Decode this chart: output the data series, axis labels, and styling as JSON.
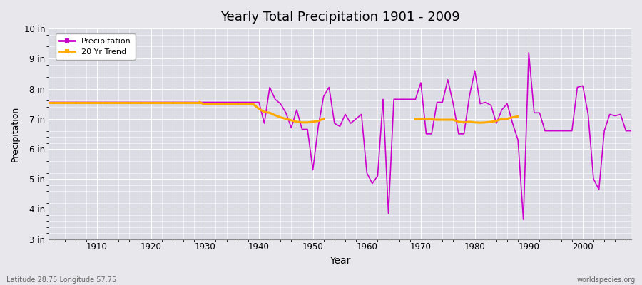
{
  "title": "Yearly Total Precipitation 1901 - 2009",
  "xlabel": "Year",
  "ylabel": "Precipitation",
  "precip_color": "#cc00cc",
  "trend_color": "#ffaa00",
  "bg_color": "#e8e8ec",
  "plot_bg_color": "#dcdce4",
  "grid_color": "#ffffff",
  "ylim": [
    3,
    10
  ],
  "xlim": [
    1901,
    2009
  ],
  "yticks": [
    3,
    4,
    5,
    6,
    7,
    8,
    9,
    10
  ],
  "ytick_labels": [
    "3 in",
    "4 in",
    "5 in",
    "6 in",
    "7 in",
    "8 in",
    "9 in",
    "10 in"
  ],
  "xticks": [
    1910,
    1920,
    1930,
    1940,
    1950,
    1960,
    1970,
    1980,
    1990,
    2000
  ],
  "footnote_left": "Latitude 28.75 Longitude 57.75",
  "footnote_right": "worldspecies.org",
  "years": [
    1901,
    1902,
    1903,
    1904,
    1905,
    1906,
    1907,
    1908,
    1909,
    1910,
    1911,
    1912,
    1913,
    1914,
    1915,
    1916,
    1917,
    1918,
    1919,
    1920,
    1921,
    1922,
    1923,
    1924,
    1925,
    1926,
    1927,
    1928,
    1929,
    1930,
    1931,
    1932,
    1933,
    1934,
    1935,
    1936,
    1937,
    1938,
    1939,
    1940,
    1941,
    1942,
    1943,
    1944,
    1945,
    1946,
    1947,
    1948,
    1949,
    1950,
    1951,
    1952,
    1953,
    1954,
    1955,
    1956,
    1957,
    1958,
    1959,
    1960,
    1961,
    1962,
    1963,
    1964,
    1965,
    1966,
    1967,
    1968,
    1969,
    1970,
    1971,
    1972,
    1973,
    1974,
    1975,
    1976,
    1977,
    1978,
    1979,
    1980,
    1981,
    1982,
    1983,
    1984,
    1985,
    1986,
    1987,
    1988,
    1989,
    1990,
    1991,
    1992,
    1993,
    1994,
    1995,
    1996,
    1997,
    1998,
    1999,
    2000,
    2001,
    2002,
    2003,
    2004,
    2005,
    2006,
    2007,
    2008,
    2009
  ],
  "precip": [
    7.55,
    7.55,
    7.55,
    7.55,
    7.55,
    7.55,
    7.55,
    7.55,
    7.55,
    7.55,
    7.55,
    7.55,
    7.55,
    7.55,
    7.55,
    7.55,
    7.55,
    7.55,
    7.55,
    7.55,
    7.55,
    7.55,
    7.55,
    7.55,
    7.55,
    7.55,
    7.55,
    7.55,
    7.55,
    7.55,
    7.55,
    7.55,
    7.55,
    7.55,
    7.55,
    7.55,
    7.55,
    7.55,
    7.55,
    7.55,
    6.85,
    8.05,
    7.65,
    7.5,
    7.2,
    6.7,
    7.3,
    6.65,
    6.65,
    5.3,
    6.75,
    7.75,
    8.05,
    6.85,
    6.75,
    7.15,
    6.85,
    7.0,
    7.15,
    5.2,
    4.85,
    5.1,
    7.65,
    3.85,
    7.65,
    7.65,
    7.65,
    7.65,
    7.65,
    8.2,
    6.5,
    6.5,
    7.55,
    7.55,
    8.3,
    7.5,
    6.5,
    6.5,
    7.75,
    8.6,
    7.5,
    7.55,
    7.45,
    6.85,
    7.3,
    7.5,
    6.85,
    6.3,
    3.65,
    9.2,
    7.2,
    7.2,
    6.6,
    6.6,
    6.6,
    6.6,
    6.6,
    6.6,
    8.05,
    8.1,
    7.15,
    5.0,
    4.65,
    6.6,
    7.15,
    7.1,
    7.15,
    6.6,
    6.6
  ],
  "trend_segments": [
    {
      "years": [
        1901,
        1902,
        1903,
        1904,
        1905,
        1906,
        1907,
        1908,
        1909,
        1910,
        1911,
        1912,
        1913,
        1914,
        1915,
        1916,
        1917,
        1918,
        1919,
        1920,
        1921,
        1922,
        1923,
        1924,
        1925,
        1926,
        1927,
        1928,
        1929
      ],
      "vals": [
        7.55,
        7.55,
        7.55,
        7.55,
        7.55,
        7.55,
        7.55,
        7.55,
        7.55,
        7.55,
        7.55,
        7.55,
        7.55,
        7.55,
        7.55,
        7.55,
        7.55,
        7.55,
        7.55,
        7.55,
        7.55,
        7.55,
        7.55,
        7.55,
        7.55,
        7.55,
        7.55,
        7.55,
        7.55
      ]
    },
    {
      "years": [
        1929,
        1930,
        1931,
        1932,
        1933,
        1934,
        1935,
        1936,
        1937,
        1938,
        1939,
        1940,
        1941,
        1942,
        1943,
        1944,
        1945,
        1946,
        1947,
        1948,
        1949,
        1950,
        1951,
        1952
      ],
      "vals": [
        7.55,
        7.48,
        7.48,
        7.48,
        7.48,
        7.48,
        7.48,
        7.48,
        7.48,
        7.48,
        7.48,
        7.33,
        7.23,
        7.2,
        7.12,
        7.05,
        7.0,
        6.95,
        6.9,
        6.88,
        6.88,
        6.9,
        6.93,
        7.0
      ]
    },
    {
      "years": [
        1969,
        1970,
        1971,
        1972,
        1973,
        1974,
        1975,
        1976,
        1977,
        1978,
        1979,
        1980,
        1981,
        1982,
        1983,
        1984,
        1985,
        1986,
        1987,
        1988
      ],
      "vals": [
        7.0,
        7.0,
        6.99,
        6.98,
        6.97,
        6.97,
        6.97,
        6.97,
        6.9,
        6.88,
        6.9,
        6.88,
        6.87,
        6.88,
        6.9,
        6.93,
        7.0,
        7.0,
        7.05,
        7.08
      ]
    }
  ]
}
